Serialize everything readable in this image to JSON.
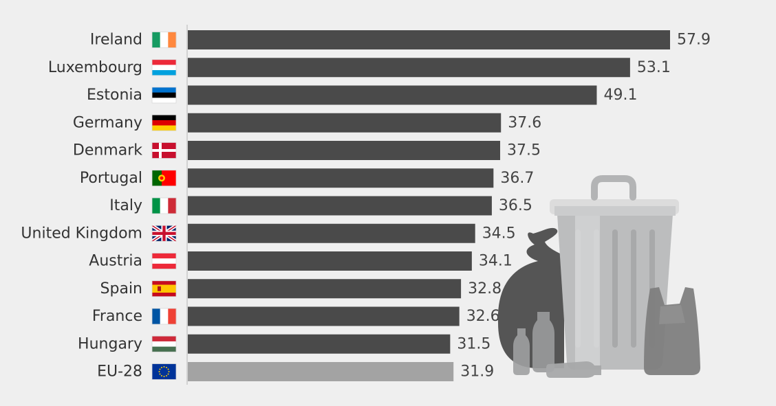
{
  "colors": {
    "background": "#efefef",
    "bar_country": "#4a4a4a",
    "bar_eu": "#a3a3a3",
    "axis": "#c8c8c8",
    "text": "#333333"
  },
  "illustration": {
    "name": "trash-can-with-bags-and-bottles",
    "icon": "trash-bin-icon"
  },
  "chart_data": {
    "type": "bar",
    "orientation": "horizontal",
    "categories": [
      "Ireland",
      "Luxembourg",
      "Estonia",
      "Germany",
      "Denmark",
      "Portugal",
      "Italy",
      "United Kingdom",
      "Austria",
      "Spain",
      "France",
      "Hungary",
      "EU-28"
    ],
    "values": [
      57.9,
      53.1,
      49.1,
      37.6,
      37.5,
      36.7,
      36.5,
      34.5,
      34.1,
      32.8,
      32.6,
      31.5,
      31.9
    ],
    "value_labels": [
      "57.9",
      "53.1",
      "49.1",
      "37.6",
      "37.5",
      "36.7",
      "36.5",
      "34.5",
      "34.1",
      "32.8",
      "32.6",
      "31.5",
      "31.9"
    ],
    "flags": [
      "ie",
      "lu",
      "ee",
      "de",
      "dk",
      "pt",
      "it",
      "gb",
      "at",
      "es",
      "fr",
      "hu",
      "eu"
    ],
    "highlight_category": "EU-28",
    "xlim": [
      0,
      57.9
    ],
    "grid": false,
    "legend": "none",
    "title": "",
    "xlabel": "",
    "ylabel": ""
  }
}
